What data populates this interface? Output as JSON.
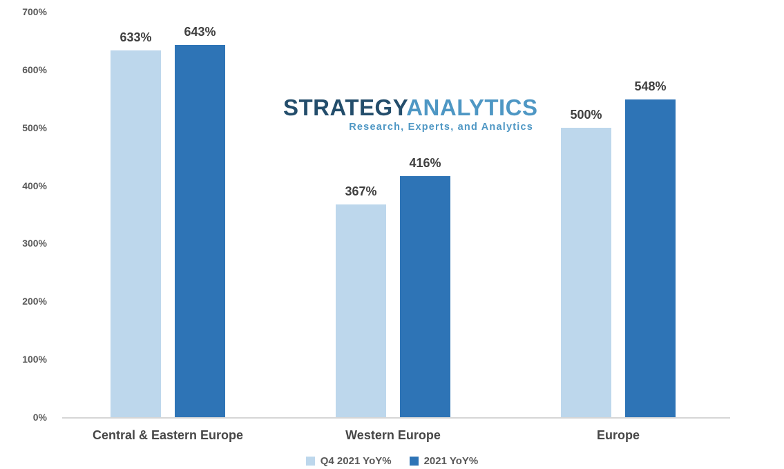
{
  "chart_data": {
    "type": "bar",
    "categories": [
      "Central & Eastern Europe",
      "Western Europe",
      "Europe"
    ],
    "series": [
      {
        "name": "Q4 2021 YoY%",
        "color": "#bdd7ec",
        "values": [
          633,
          367,
          500
        ]
      },
      {
        "name": "2021 YoY%",
        "color": "#2e74b6",
        "values": [
          643,
          416,
          548
        ]
      }
    ],
    "value_labels": [
      [
        "633%",
        "367%",
        "500%"
      ],
      [
        "643%",
        "416%",
        "548%"
      ]
    ],
    "title": "",
    "xlabel": "",
    "ylabel": "",
    "ylim": [
      0,
      700
    ],
    "ytick_step": 100,
    "yticks": [
      "0%",
      "100%",
      "200%",
      "300%",
      "400%",
      "500%",
      "600%",
      "700%"
    ],
    "grid": false,
    "legend_position": "bottom",
    "axis_line_color": "#d6d6d6"
  },
  "watermark": {
    "brand_part1": "STRATEGY",
    "brand_part2": "ANALYTICS",
    "tagline": "Research, Experts, and Analytics",
    "brand_color_dark": "#234d6b",
    "brand_color_light": "#4e97c4"
  }
}
